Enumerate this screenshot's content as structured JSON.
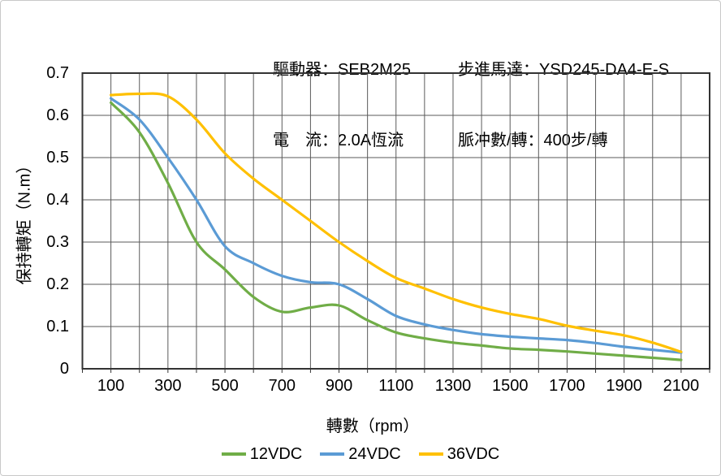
{
  "header": {
    "left_rows": [
      "驅動器：SEB2M25",
      "電　流：2.0A恆流"
    ],
    "right_rows": [
      "步進馬達：YSD245-DA4-E-S",
      "脈冲數/轉：400步/轉"
    ]
  },
  "chart_data": {
    "type": "line",
    "title": "",
    "xlabel": "轉數（rpm）",
    "ylabel": "保持轉矩（N.m）",
    "xlim": [
      0,
      2200
    ],
    "ylim": [
      0,
      0.7
    ],
    "grid": true,
    "grid_step_x_rpm": 100,
    "grid_step_y_nm": 0.1,
    "grid_color": "#5a5a5a",
    "axis_border_color": "#333333",
    "tick_color": "#333333",
    "legend_position": "bottom",
    "x_tick_labels": [
      "100",
      "300",
      "500",
      "700",
      "900",
      "1100",
      "1300",
      "1500",
      "1700",
      "1900",
      "2100"
    ],
    "y_tick_labels": [
      "0",
      "0.1",
      "0.2",
      "0.3",
      "0.4",
      "0.5",
      "0.6",
      "0.7"
    ],
    "x": [
      100,
      200,
      300,
      400,
      500,
      600,
      700,
      800,
      900,
      1000,
      1100,
      1200,
      1300,
      1400,
      1500,
      1600,
      1700,
      1800,
      1900,
      2000,
      2100
    ],
    "series": [
      {
        "name": "12VDC",
        "color": "#70AD47",
        "values": [
          0.63,
          0.56,
          0.44,
          0.3,
          0.235,
          0.17,
          0.135,
          0.145,
          0.15,
          0.115,
          0.086,
          0.072,
          0.062,
          0.055,
          0.048,
          0.045,
          0.041,
          0.036,
          0.031,
          0.026,
          0.021
        ]
      },
      {
        "name": "24VDC",
        "color": "#5B9BD5",
        "values": [
          0.64,
          0.59,
          0.5,
          0.4,
          0.29,
          0.25,
          0.22,
          0.205,
          0.2,
          0.165,
          0.125,
          0.105,
          0.092,
          0.082,
          0.076,
          0.072,
          0.068,
          0.061,
          0.052,
          0.045,
          0.038
        ]
      },
      {
        "name": "36VDC",
        "color": "#FFC000",
        "values": [
          0.648,
          0.651,
          0.645,
          0.59,
          0.51,
          0.45,
          0.4,
          0.35,
          0.3,
          0.255,
          0.215,
          0.19,
          0.165,
          0.145,
          0.13,
          0.118,
          0.102,
          0.09,
          0.079,
          0.062,
          0.04
        ]
      }
    ]
  }
}
